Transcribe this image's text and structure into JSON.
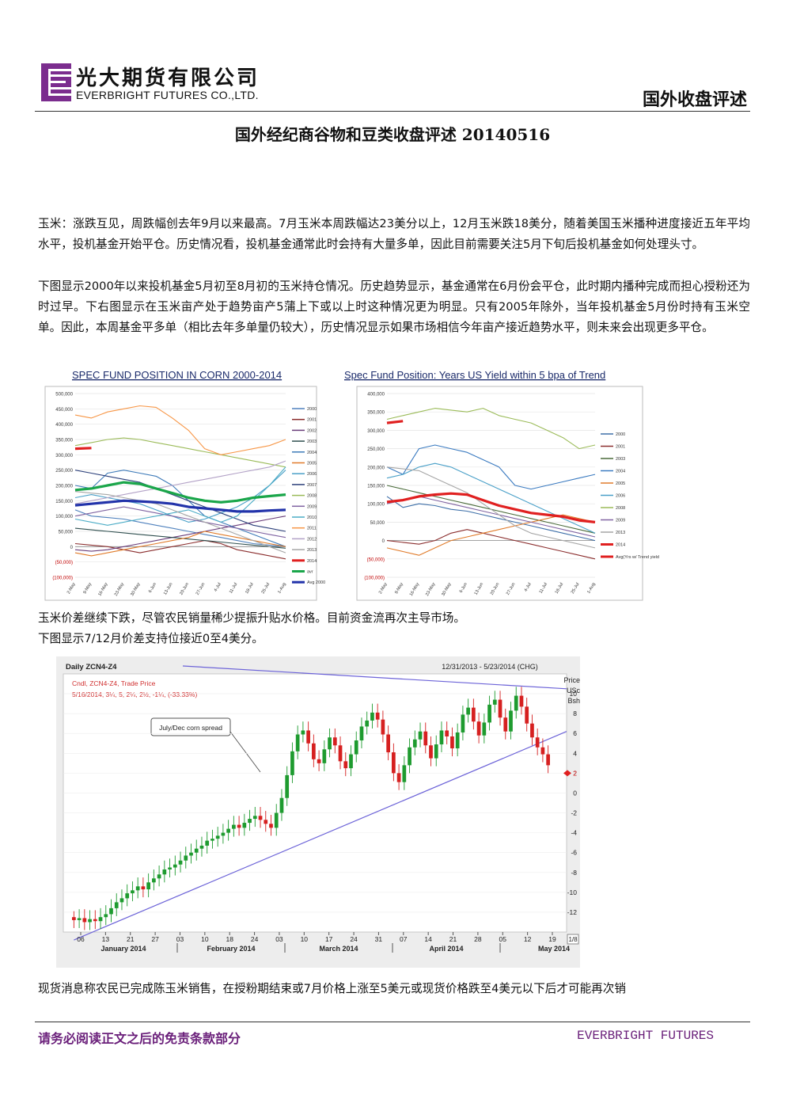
{
  "header": {
    "company_cn": "光大期货有限公司",
    "company_en": "EVERBRIGHT FUTURES CO.,LTD.",
    "section_title": "国外收盘评述",
    "logo_icon": "everbright-e-logo",
    "logo_color": "#7b2d8e"
  },
  "report_title": "国外经纪商谷物和豆类收盘评述 20140516",
  "paragraphs": {
    "p1": "玉米：涨跌互见，周跌幅创去年9月以来最高。7月玉米本周跌幅达23美分以上，12月玉米跌18美分，随着美国玉米播种进度接近五年平均水平，投机基金开始平仓。历史情况看，投机基金通常此时会持有大量多单，因此目前需要关注5月下旬后投机基金如何处理头寸。",
    "p2": "下图显示2000年以来投机基金5月初至8月初的玉米持仓情况。历史趋势显示，基金通常在6月份会平仓，此时期内播种完成而担心授粉还为时过早。下右图显示在玉米亩产处于趋势亩产5蒲上下或以上时这种情况更为明显。只有2005年除外，当年投机基金5月份时持有玉米空单。因此，本周基金平多单（相比去年多单量仍较大），历史情况显示如果市场相信今年亩产接近趋势水平，则未来会出现更多平仓。",
    "p3": "玉米价差继续下跌，尽管农民销量稀少提振升贴水价格。目前资金流再次主导市场。",
    "p4": "下图显示7/12月价差支持位接近0至4美分。",
    "p5": "现货消息称农民已完成陈玉米销售，在授粉期结束或7月价格上涨至5美元或现货价格跌至4美元以下后才可能再次销"
  },
  "chart_data": [
    {
      "type": "line",
      "title": "SPEC FUND POSITION IN CORN 2000-2014",
      "y_ticks": [
        "500,000",
        "450,000",
        "400,000",
        "350,000",
        "300,000",
        "250,000",
        "200,000",
        "150,000",
        "100,000",
        "50,000",
        "0",
        "(50,000)",
        "(100,000)"
      ],
      "ylim": [
        -100000,
        500000
      ],
      "x_ticks": [
        "2-May",
        "9-May",
        "16-May",
        "23-May",
        "30-May",
        "6-Jun",
        "13-Jun",
        "20-Jun",
        "27-Jun",
        "4-Jul",
        "11-Jul",
        "18-Jul",
        "25-Jul",
        "1-Aug"
      ],
      "legend_position": "right",
      "series": [
        {
          "name": "2000",
          "color": "#4f81bd",
          "values": [
            120000,
            100000,
            95000,
            90000,
            80000,
            70000,
            60000,
            50000,
            40000,
            30000,
            20000,
            10000,
            5000,
            0
          ]
        },
        {
          "name": "2001",
          "color": "#8b2e2e",
          "values": [
            10000,
            5000,
            0,
            -10000,
            -20000,
            -10000,
            0,
            10000,
            20000,
            10000,
            -10000,
            -20000,
            -30000,
            -40000
          ]
        },
        {
          "name": "2002",
          "color": "#6a3d7a",
          "values": [
            -10000,
            -15000,
            -10000,
            0,
            10000,
            20000,
            30000,
            40000,
            50000,
            60000,
            70000,
            80000,
            90000,
            100000
          ]
        },
        {
          "name": "2003",
          "color": "#2f4f4f",
          "values": [
            60000,
            55000,
            50000,
            45000,
            40000,
            35000,
            30000,
            25000,
            20000,
            15000,
            10000,
            5000,
            0,
            -5000
          ]
        },
        {
          "name": "2004",
          "color": "#3d7ab8",
          "values": [
            200000,
            190000,
            240000,
            250000,
            240000,
            230000,
            200000,
            150000,
            100000,
            80000,
            60000,
            40000,
            20000,
            0
          ]
        },
        {
          "name": "2005",
          "color": "#e07b2a",
          "values": [
            -20000,
            -30000,
            -20000,
            -10000,
            0,
            10000,
            20000,
            30000,
            50000,
            40000,
            30000,
            20000,
            10000,
            0
          ]
        },
        {
          "name": "2006",
          "color": "#4aa0c8",
          "values": [
            160000,
            170000,
            160000,
            150000,
            140000,
            120000,
            100000,
            80000,
            90000,
            110000,
            130000,
            160000,
            200000,
            250000
          ]
        },
        {
          "name": "2007",
          "color": "#2b3f7a",
          "values": [
            250000,
            240000,
            230000,
            220000,
            210000,
            190000,
            170000,
            150000,
            130000,
            110000,
            90000,
            70000,
            60000,
            50000
          ]
        },
        {
          "name": "2008",
          "color": "#9bbb59",
          "values": [
            330000,
            340000,
            350000,
            355000,
            350000,
            340000,
            330000,
            320000,
            310000,
            300000,
            290000,
            280000,
            270000,
            260000
          ]
        },
        {
          "name": "2009",
          "color": "#8064a2",
          "values": [
            100000,
            110000,
            120000,
            130000,
            120000,
            110000,
            100000,
            90000,
            80000,
            70000,
            60000,
            50000,
            40000,
            30000
          ]
        },
        {
          "name": "2010",
          "color": "#4bacc6",
          "values": [
            90000,
            80000,
            70000,
            80000,
            90000,
            100000,
            110000,
            120000,
            100000,
            80000,
            100000,
            150000,
            200000,
            260000
          ]
        },
        {
          "name": "2011",
          "color": "#f79646",
          "values": [
            430000,
            420000,
            440000,
            450000,
            460000,
            455000,
            420000,
            380000,
            320000,
            300000,
            310000,
            320000,
            330000,
            350000
          ]
        },
        {
          "name": "2012",
          "color": "#b3a2c7",
          "values": [
            140000,
            150000,
            160000,
            170000,
            180000,
            190000,
            200000,
            210000,
            220000,
            230000,
            240000,
            250000,
            260000,
            280000
          ]
        },
        {
          "name": "2013",
          "color": "#a6a6a6",
          "values": [
            180000,
            175000,
            170000,
            160000,
            150000,
            140000,
            120000,
            100000,
            80000,
            60000,
            40000,
            20000,
            0,
            -20000
          ]
        },
        {
          "name": "2014",
          "color": "#e02020",
          "values": [
            320000,
            322000
          ]
        },
        {
          "name": "avr",
          "color": "#1aa64a",
          "values": [
            185000,
            190000,
            200000,
            210000,
            205000,
            190000,
            175000,
            160000,
            150000,
            145000,
            150000,
            160000,
            165000,
            170000
          ]
        },
        {
          "name": "Avg 2000",
          "color": "#2233aa",
          "values": [
            135000,
            140000,
            145000,
            150000,
            148000,
            145000,
            140000,
            130000,
            125000,
            120000,
            115000,
            115000,
            118000,
            120000
          ]
        }
      ]
    },
    {
      "type": "line",
      "title": "Spec Fund Position: Years US Yield within 5 bpa of Trend",
      "y_ticks": [
        "400,000",
        "350,000",
        "300,000",
        "250,000",
        "200,000",
        "150,000",
        "100,000",
        "50,000",
        "0",
        "(50,000)",
        "(100,000)"
      ],
      "ylim": [
        -100000,
        400000
      ],
      "x_ticks": [
        "2-May",
        "9-May",
        "16-May",
        "23-May",
        "30-May",
        "6-Jun",
        "13-Jun",
        "20-Jun",
        "27-Jun",
        "4-Jul",
        "11-Jul",
        "18-Jul",
        "25-Jul",
        "1-Aug"
      ],
      "legend_position": "right",
      "series": [
        {
          "name": "2000",
          "color": "#3d6fa8",
          "values": [
            120000,
            90000,
            100000,
            95000,
            85000,
            80000,
            70000,
            60000,
            50000,
            40000,
            30000,
            20000,
            10000,
            0
          ]
        },
        {
          "name": "2001",
          "color": "#8b2e2e",
          "values": [
            0,
            -5000,
            -10000,
            0,
            20000,
            30000,
            20000,
            10000,
            0,
            -10000,
            -20000,
            -30000,
            -40000,
            -50000
          ]
        },
        {
          "name": "2003",
          "color": "#4a6b3a",
          "values": [
            150000,
            140000,
            130000,
            120000,
            110000,
            100000,
            90000,
            80000,
            70000,
            60000,
            50000,
            40000,
            30000,
            20000
          ]
        },
        {
          "name": "2004",
          "color": "#3a7ac0",
          "values": [
            200000,
            180000,
            250000,
            260000,
            250000,
            240000,
            220000,
            200000,
            150000,
            140000,
            150000,
            160000,
            170000,
            180000
          ]
        },
        {
          "name": "2005",
          "color": "#e07b2a",
          "values": [
            -20000,
            -30000,
            -40000,
            -20000,
            0,
            10000,
            20000,
            30000,
            40000,
            50000,
            60000,
            70000,
            60000,
            50000
          ]
        },
        {
          "name": "2006",
          "color": "#4aa0c8",
          "values": [
            170000,
            180000,
            200000,
            210000,
            200000,
            180000,
            160000,
            140000,
            120000,
            100000,
            80000,
            60000,
            40000,
            20000
          ]
        },
        {
          "name": "2008",
          "color": "#9bbb59",
          "values": [
            330000,
            340000,
            350000,
            360000,
            355000,
            350000,
            360000,
            340000,
            330000,
            320000,
            300000,
            280000,
            250000,
            260000
          ]
        },
        {
          "name": "2009",
          "color": "#8064a2",
          "values": [
            100000,
            110000,
            120000,
            110000,
            100000,
            90000,
            80000,
            70000,
            60000,
            50000,
            40000,
            30000,
            20000,
            10000
          ]
        },
        {
          "name": "2013",
          "color": "#a6a6a6",
          "values": [
            200000,
            195000,
            190000,
            170000,
            150000,
            130000,
            100000,
            70000,
            40000,
            20000,
            10000,
            0,
            -10000,
            -20000
          ]
        },
        {
          "name": "2014",
          "color": "#e02020",
          "values": [
            320000,
            325000
          ]
        },
        {
          "name": "Avg(Yrs w/ Trend yield",
          "color": "#e02020",
          "values": [
            105000,
            110000,
            120000,
            125000,
            128000,
            125000,
            110000,
            95000,
            85000,
            75000,
            70000,
            65000,
            55000,
            50000
          ]
        }
      ]
    },
    {
      "type": "candlestick",
      "title": "Daily ZCN4-Z4",
      "date_range": "12/31/2013 - 5/23/2014 (CHG)",
      "legend_line1": "Cndl, ZCN4-Z4, Trade Price",
      "legend_line2": "5/16/2014, 3¼, 5, 2¼, 2½, -1¼, (-33.33%)",
      "annotation": "July/Dec corn spread",
      "ylabel": "Price USc Bsh",
      "y_ticks": [
        "10",
        "8",
        "6",
        "4",
        "2",
        "0",
        "-2",
        "-4",
        "-6",
        "-8",
        "-10",
        "-12"
      ],
      "ylim": [
        -14,
        12
      ],
      "last_price": "2",
      "scale": "1/8",
      "x_ticks": [
        "06",
        "13",
        "21",
        "27",
        "03",
        "10",
        "18",
        "24",
        "03",
        "10",
        "17",
        "24",
        "31",
        "07",
        "14",
        "21",
        "28",
        "05",
        "12",
        "19"
      ],
      "months": [
        "January 2014",
        "February 2014",
        "March 2014",
        "April 2014",
        "May 2014"
      ],
      "closes": [
        -12.8,
        -12.6,
        -13.0,
        -12.7,
        -12.9,
        -12.5,
        -12.2,
        -11.6,
        -11.0,
        -10.6,
        -10.1,
        -9.8,
        -9.4,
        -9.7,
        -9.0,
        -8.6,
        -8.2,
        -7.7,
        -7.5,
        -7.2,
        -6.8,
        -6.3,
        -6.0,
        -5.6,
        -5.3,
        -4.8,
        -4.6,
        -4.3,
        -4.0,
        -3.6,
        -3.2,
        -3.5,
        -3.0,
        -2.6,
        -2.3,
        -2.7,
        -3.1,
        -3.5,
        -2.0,
        -0.5,
        1.8,
        4.2,
        5.9,
        6.3,
        5.0,
        3.4,
        3.0,
        4.4,
        5.6,
        4.8,
        3.2,
        2.5,
        3.9,
        5.3,
        6.7,
        7.3,
        8.1,
        7.4,
        5.9,
        4.1,
        2.0,
        1.1,
        2.8,
        4.6,
        5.4,
        6.2,
        4.8,
        3.5,
        4.9,
        6.3,
        5.7,
        4.5,
        6.1,
        7.9,
        8.6,
        7.2,
        5.8,
        7.1,
        8.9,
        9.4,
        7.6,
        6.2,
        8.3,
        9.8,
        8.7,
        7.0,
        5.6,
        4.6,
        3.9,
        2.8
      ]
    }
  ],
  "footer": {
    "disclaimer_note": "请务必阅读正文之后的免责条款部分",
    "brand": "EVERBRIGHT FUTURES",
    "color": "#6a1f7a"
  }
}
